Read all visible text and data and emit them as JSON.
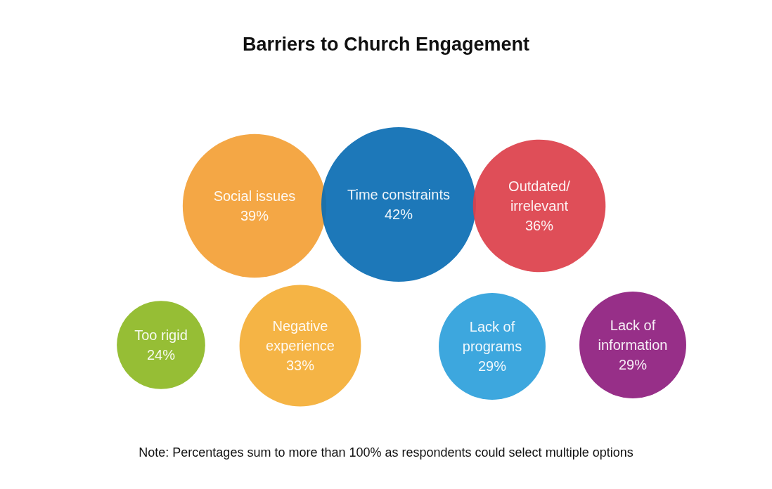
{
  "chart_data": {
    "type": "other",
    "title": "Barriers to Church Engagement",
    "categories": [
      "Social issues",
      "Time constraints",
      "Outdated/irrelevant",
      "Too rigid",
      "Negative experience",
      "Lack of programs",
      "Lack of information"
    ],
    "values": [
      39,
      42,
      36,
      24,
      33,
      29,
      29
    ],
    "value_labels": [
      "39%",
      "42%",
      "36%",
      "24%",
      "33%",
      "29%",
      "29%"
    ],
    "colors": [
      "#f3a035",
      "#0a6db3",
      "#dc3f4a",
      "#8db824",
      "#f4ae35",
      "#2d9fdb",
      "#8e1d7e"
    ],
    "data_labels": true,
    "annotations": [
      "Note: Percentages sum to more than 100% as respondents could select multiple options"
    ]
  }
}
